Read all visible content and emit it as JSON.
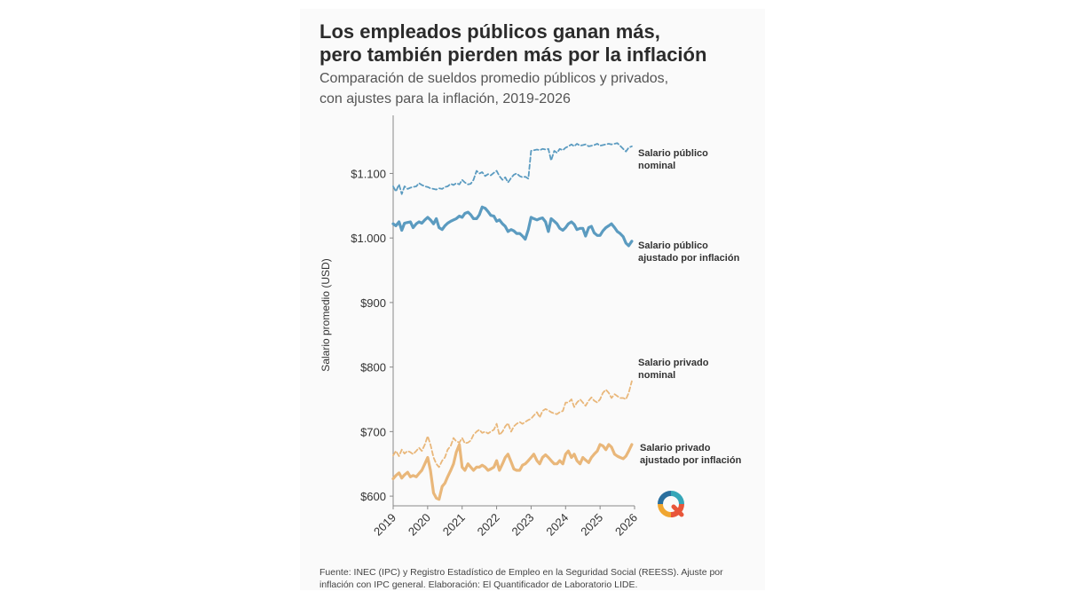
{
  "header": {
    "title_line1": "Los empleados públicos ganan más,",
    "title_line2": "pero también pierden más por la inflación",
    "subtitle_line1": "Comparación de sueldos promedio públicos y privados,",
    "subtitle_line2": "con ajustes para la inflación, 2019-2026"
  },
  "footer": {
    "source_line1": "Fuente: INEC (IPC) y Registro Estadístico de Empleo en la Seguridad Social (REESS). Ajuste por",
    "source_line2": "inflación con IPC general. Elaboración: El Quantificador de Laboratorio LIDE."
  },
  "logo": {
    "icon": "quantificador-logo-icon"
  },
  "colors": {
    "public": "#5b9bc0",
    "private": "#e9b77a",
    "axis": "#888888",
    "text": "#333333"
  },
  "chart_data": {
    "type": "line",
    "title": "Los empleados públicos ganan más, pero también pierden más por la inflación",
    "subtitle": "Comparación de sueldos promedio públicos y privados, con ajustes para la inflación, 2019-2026",
    "xlabel": "",
    "ylabel": "Salario promedio (USD)",
    "xlim": [
      2019,
      2026
    ],
    "ylim": [
      585,
      1190
    ],
    "x_ticks": [
      "2019",
      "2020",
      "2021",
      "2022",
      "2023",
      "2024",
      "2025",
      "2026"
    ],
    "y_ticks": [
      {
        "value": 600,
        "label": "$600"
      },
      {
        "value": 700,
        "label": "$700"
      },
      {
        "value": 800,
        "label": "$800"
      },
      {
        "value": 900,
        "label": "$900"
      },
      {
        "value": 1000,
        "label": "$1.000"
      },
      {
        "value": 1100,
        "label": "$1.100"
      }
    ],
    "grid": false,
    "series": [
      {
        "name": "Salario público nominal",
        "label_line1": "Salario público",
        "label_line2": "nominal",
        "color": "#5b9bc0",
        "style": "dashed",
        "x": [
          2019.0,
          2019.08,
          2019.17,
          2019.25,
          2019.33,
          2019.42,
          2019.5,
          2019.58,
          2019.67,
          2019.75,
          2019.83,
          2019.92,
          2020.0,
          2020.08,
          2020.17,
          2020.25,
          2020.33,
          2020.42,
          2020.5,
          2020.58,
          2020.67,
          2020.75,
          2020.83,
          2020.92,
          2021.0,
          2021.08,
          2021.17,
          2021.25,
          2021.33,
          2021.42,
          2021.5,
          2021.58,
          2021.67,
          2021.75,
          2021.83,
          2021.92,
          2022.0,
          2022.08,
          2022.17,
          2022.25,
          2022.33,
          2022.42,
          2022.5,
          2022.58,
          2022.67,
          2022.75,
          2022.83,
          2022.92,
          2023.0,
          2023.08,
          2023.17,
          2023.25,
          2023.33,
          2023.42,
          2023.5,
          2023.58,
          2023.67,
          2023.75,
          2023.83,
          2023.92,
          2024.0,
          2024.08,
          2024.17,
          2024.25,
          2024.33,
          2024.42,
          2024.5,
          2024.58,
          2024.67,
          2024.75,
          2024.83,
          2024.92,
          2025.0,
          2025.08,
          2025.17,
          2025.25,
          2025.33,
          2025.42,
          2025.5,
          2025.58,
          2025.67,
          2025.75,
          2025.83,
          2025.92
        ],
        "values": [
          1080,
          1072,
          1083,
          1068,
          1080,
          1076,
          1078,
          1079,
          1080,
          1085,
          1082,
          1080,
          1079,
          1077,
          1076,
          1075,
          1077,
          1076,
          1079,
          1080,
          1084,
          1082,
          1085,
          1083,
          1090,
          1086,
          1083,
          1084,
          1090,
          1104,
          1100,
          1102,
          1096,
          1099,
          1097,
          1101,
          1104,
          1096,
          1090,
          1094,
          1086,
          1093,
          1098,
          1100,
          1096,
          1094,
          1095,
          1092,
          1135,
          1136,
          1137,
          1136,
          1138,
          1137,
          1138,
          1120,
          1135,
          1132,
          1138,
          1136,
          1140,
          1142,
          1145,
          1142,
          1146,
          1143,
          1144,
          1145,
          1142,
          1143,
          1144,
          1146,
          1143,
          1144,
          1145,
          1146,
          1145,
          1146,
          1147,
          1143,
          1138,
          1134,
          1140,
          1142
        ]
      },
      {
        "name": "Salario público ajustado por inflación",
        "label_line1": "Salario público",
        "label_line2": "ajustado por inflación",
        "color": "#5b9bc0",
        "style": "solid",
        "x": [
          2019.0,
          2019.08,
          2019.17,
          2019.25,
          2019.33,
          2019.42,
          2019.5,
          2019.58,
          2019.67,
          2019.75,
          2019.83,
          2019.92,
          2020.0,
          2020.08,
          2020.17,
          2020.25,
          2020.33,
          2020.42,
          2020.5,
          2020.58,
          2020.67,
          2020.75,
          2020.83,
          2020.92,
          2021.0,
          2021.08,
          2021.17,
          2021.25,
          2021.33,
          2021.42,
          2021.5,
          2021.58,
          2021.67,
          2021.75,
          2021.83,
          2021.92,
          2022.0,
          2022.08,
          2022.17,
          2022.25,
          2022.33,
          2022.42,
          2022.5,
          2022.58,
          2022.67,
          2022.75,
          2022.83,
          2022.92,
          2023.0,
          2023.08,
          2023.17,
          2023.25,
          2023.33,
          2023.42,
          2023.5,
          2023.58,
          2023.67,
          2023.75,
          2023.83,
          2023.92,
          2024.0,
          2024.08,
          2024.17,
          2024.25,
          2024.33,
          2024.42,
          2024.5,
          2024.58,
          2024.67,
          2024.75,
          2024.83,
          2024.92,
          2025.0,
          2025.08,
          2025.17,
          2025.25,
          2025.33,
          2025.42,
          2025.5,
          2025.58,
          2025.67,
          2025.75,
          2025.83,
          2025.92
        ],
        "values": [
          1022,
          1019,
          1025,
          1012,
          1023,
          1024,
          1025,
          1016,
          1022,
          1025,
          1023,
          1028,
          1032,
          1028,
          1022,
          1030,
          1016,
          1013,
          1019,
          1023,
          1026,
          1028,
          1030,
          1034,
          1032,
          1038,
          1040,
          1036,
          1030,
          1030,
          1036,
          1048,
          1046,
          1041,
          1035,
          1034,
          1026,
          1028,
          1022,
          1018,
          1010,
          1013,
          1011,
          1007,
          1007,
          1003,
          998,
          1013,
          1032,
          1030,
          1028,
          1030,
          1031,
          1025,
          1010,
          1030,
          1026,
          1022,
          1015,
          1012,
          1016,
          1022,
          1025,
          1021,
          1013,
          1015,
          1015,
          1003,
          1016,
          1018,
          1008,
          1004,
          1004,
          1011,
          1016,
          1019,
          1022,
          1016,
          1010,
          1007,
          1002,
          992,
          988,
          995
        ]
      },
      {
        "name": "Salario privado nominal",
        "label_line1": "Salario privado",
        "label_line2": "nominal",
        "color": "#e9b77a",
        "style": "dashed",
        "x": [
          2019.0,
          2019.08,
          2019.17,
          2019.25,
          2019.33,
          2019.42,
          2019.5,
          2019.58,
          2019.67,
          2019.75,
          2019.83,
          2019.92,
          2020.0,
          2020.08,
          2020.17,
          2020.25,
          2020.33,
          2020.42,
          2020.5,
          2020.58,
          2020.67,
          2020.75,
          2020.83,
          2020.92,
          2021.0,
          2021.08,
          2021.17,
          2021.25,
          2021.33,
          2021.42,
          2021.5,
          2021.58,
          2021.67,
          2021.75,
          2021.83,
          2021.92,
          2022.0,
          2022.08,
          2022.17,
          2022.25,
          2022.33,
          2022.42,
          2022.5,
          2022.58,
          2022.67,
          2022.75,
          2022.83,
          2022.92,
          2023.0,
          2023.08,
          2023.17,
          2023.25,
          2023.33,
          2023.42,
          2023.5,
          2023.58,
          2023.67,
          2023.75,
          2023.83,
          2023.92,
          2024.0,
          2024.08,
          2024.17,
          2024.25,
          2024.33,
          2024.42,
          2024.5,
          2024.58,
          2024.67,
          2024.75,
          2024.83,
          2024.92,
          2025.0,
          2025.08,
          2025.17,
          2025.25,
          2025.33,
          2025.42,
          2025.5,
          2025.58,
          2025.67,
          2025.75,
          2025.83,
          2025.92
        ],
        "values": [
          663,
          670,
          662,
          672,
          666,
          670,
          668,
          665,
          670,
          675,
          670,
          680,
          693,
          680,
          660,
          650,
          645,
          655,
          660,
          672,
          678,
          690,
          685,
          683,
          690,
          682,
          683,
          686,
          695,
          700,
          703,
          698,
          700,
          697,
          700,
          703,
          712,
          695,
          700,
          708,
          713,
          700,
          708,
          712,
          715,
          712,
          715,
          718,
          720,
          725,
          730,
          722,
          732,
          735,
          733,
          730,
          728,
          727,
          730,
          732,
          745,
          745,
          750,
          738,
          745,
          750,
          745,
          740,
          748,
          753,
          748,
          745,
          750,
          760,
          765,
          760,
          752,
          758,
          755,
          752,
          752,
          750,
          760,
          778
        ]
      },
      {
        "name": "Salario privado ajustado por inflación",
        "label_line1": "Salario privado",
        "label_line2": "ajustado por inflación",
        "color": "#e9b77a",
        "style": "solid",
        "x": [
          2019.0,
          2019.08,
          2019.17,
          2019.25,
          2019.33,
          2019.42,
          2019.5,
          2019.58,
          2019.67,
          2019.75,
          2019.83,
          2019.92,
          2020.0,
          2020.08,
          2020.17,
          2020.25,
          2020.33,
          2020.42,
          2020.5,
          2020.58,
          2020.67,
          2020.75,
          2020.83,
          2020.92,
          2021.0,
          2021.08,
          2021.17,
          2021.25,
          2021.33,
          2021.42,
          2021.5,
          2021.58,
          2021.67,
          2021.75,
          2021.83,
          2021.92,
          2022.0,
          2022.08,
          2022.17,
          2022.25,
          2022.33,
          2022.42,
          2022.5,
          2022.58,
          2022.67,
          2022.75,
          2022.83,
          2022.92,
          2023.0,
          2023.08,
          2023.17,
          2023.25,
          2023.33,
          2023.42,
          2023.5,
          2023.58,
          2023.67,
          2023.75,
          2023.83,
          2023.92,
          2024.0,
          2024.08,
          2024.17,
          2024.25,
          2024.33,
          2024.42,
          2024.5,
          2024.58,
          2024.67,
          2024.75,
          2024.83,
          2024.92,
          2025.0,
          2025.08,
          2025.17,
          2025.25,
          2025.33,
          2025.42,
          2025.5,
          2025.58,
          2025.67,
          2025.75,
          2025.83,
          2025.92
        ],
        "values": [
          627,
          632,
          636,
          628,
          633,
          637,
          630,
          632,
          630,
          635,
          640,
          650,
          660,
          640,
          605,
          597,
          595,
          615,
          620,
          630,
          640,
          650,
          668,
          680,
          645,
          640,
          650,
          645,
          640,
          645,
          645,
          648,
          645,
          640,
          642,
          645,
          655,
          640,
          650,
          660,
          665,
          653,
          642,
          640,
          640,
          648,
          650,
          655,
          660,
          665,
          655,
          650,
          660,
          664,
          660,
          655,
          650,
          650,
          655,
          650,
          665,
          670,
          660,
          665,
          655,
          650,
          660,
          656,
          652,
          660,
          665,
          670,
          680,
          678,
          672,
          680,
          676,
          665,
          662,
          660,
          658,
          662,
          670,
          680
        ]
      }
    ]
  }
}
